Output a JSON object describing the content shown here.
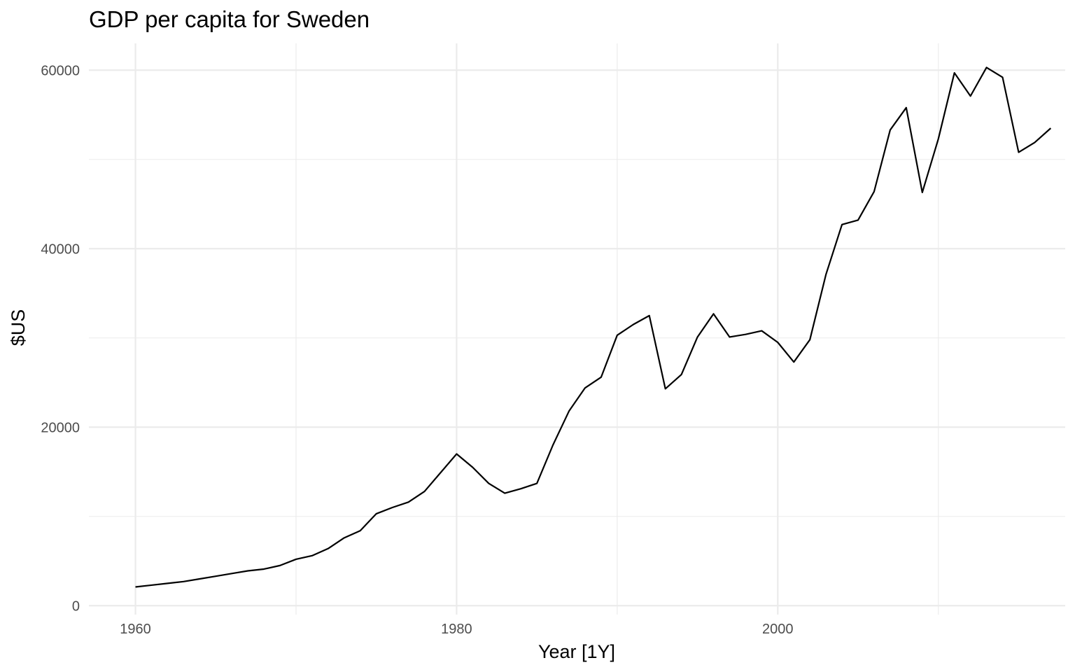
{
  "chart_data": {
    "type": "line",
    "title": "GDP per capita for Sweden",
    "xlabel": "Year [1Y]",
    "ylabel": "$US",
    "xlim": [
      1957.1,
      2017.9
    ],
    "ylim": [
      -1000,
      63000
    ],
    "x_ticks": [
      1960,
      1980,
      2000
    ],
    "x_minor_ticks": [
      1970,
      1990,
      2010
    ],
    "y_ticks": [
      0,
      20000,
      40000,
      60000
    ],
    "y_minor_ticks": [
      10000,
      30000,
      50000
    ],
    "grid": true,
    "legend": "none",
    "line_color": "#000000",
    "series": [
      {
        "x": [
          1960,
          1961,
          1962,
          1963,
          1964,
          1965,
          1966,
          1967,
          1968,
          1969,
          1970,
          1971,
          1972,
          1973,
          1974,
          1975,
          1976,
          1977,
          1978,
          1979,
          1980,
          1981,
          1982,
          1983,
          1984,
          1985,
          1986,
          1987,
          1988,
          1989,
          1990,
          1991,
          1992,
          1993,
          1994,
          1995,
          1996,
          1997,
          1998,
          1999,
          2000,
          2001,
          2002,
          2003,
          2004,
          2005,
          2006,
          2007,
          2008,
          2009,
          2010,
          2011,
          2012,
          2013,
          2014,
          2015,
          2016,
          2017
        ],
        "values": [
          2100,
          2300,
          2500,
          2700,
          3000,
          3300,
          3600,
          3900,
          4100,
          4500,
          5200,
          5600,
          6400,
          7600,
          8400,
          10300,
          11000,
          11600,
          12800,
          14900,
          17000,
          15500,
          13700,
          12600,
          13100,
          13700,
          18000,
          21800,
          24400,
          25600,
          30300,
          31500,
          32500,
          24300,
          25900,
          30100,
          32700,
          30100,
          30400,
          30800,
          29500,
          27300,
          29800,
          37100,
          42700,
          43200,
          46400,
          53300,
          55800,
          46300,
          52300,
          59700,
          57100,
          60300,
          59200,
          50800,
          51900,
          53500
        ]
      }
    ]
  }
}
